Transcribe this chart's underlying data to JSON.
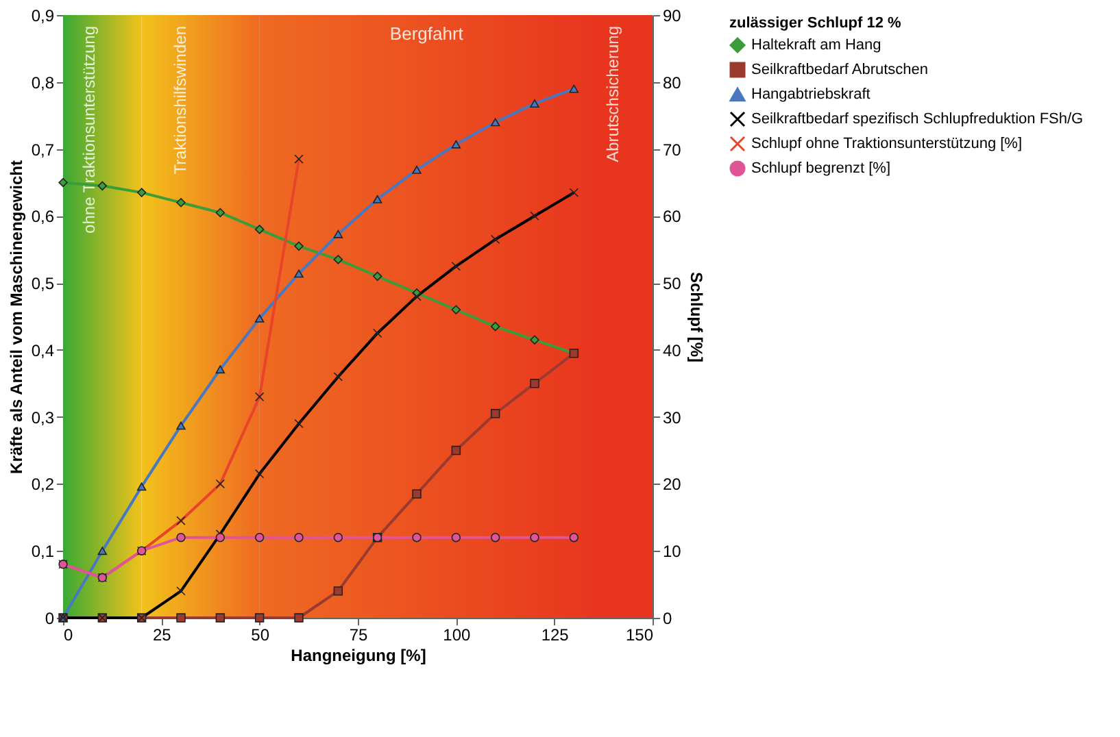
{
  "chart_data": {
    "type": "line",
    "xlabel": "Hangneigung [%]",
    "ylabel": "Kräfte als Anteil vom Maschinengewicht",
    "y2label": "Schlupf [%]",
    "legend_title": "zulässiger Schlupf 12 %",
    "legend": "right",
    "grid": true,
    "x": [
      0,
      10,
      20,
      30,
      40,
      50,
      60,
      70,
      80,
      90,
      100,
      110,
      120,
      130
    ],
    "xlim": [
      0,
      150
    ],
    "xticks": [
      0,
      25,
      50,
      75,
      100,
      125,
      150
    ],
    "ylim": [
      0,
      0.9
    ],
    "yticks": [
      {
        "value": 0,
        "label": "0"
      },
      {
        "value": 0.1,
        "label": "0,1"
      },
      {
        "value": 0.2,
        "label": "0,2"
      },
      {
        "value": 0.3,
        "label": "0,3"
      },
      {
        "value": 0.4,
        "label": "0,4"
      },
      {
        "value": 0.5,
        "label": "0,5"
      },
      {
        "value": 0.6,
        "label": "0,6"
      },
      {
        "value": 0.7,
        "label": "0,7"
      },
      {
        "value": 0.8,
        "label": "0,8"
      },
      {
        "value": 0.9,
        "label": "0,9"
      }
    ],
    "y2lim": [
      0,
      90
    ],
    "y2ticks": [
      0,
      10,
      20,
      30,
      40,
      50,
      60,
      70,
      80,
      90
    ],
    "bands": [
      {
        "axis": "x",
        "from": 0,
        "to": 20,
        "label": "ohne Traktionsunterstützung",
        "color": "#3aa935"
      },
      {
        "axis": "x",
        "from": 20,
        "to": 50,
        "label": "Traktionshilfswinden",
        "color": "#f2c21b"
      },
      {
        "axis": "x",
        "from": 50,
        "to": 135,
        "label": "Bergfahrt",
        "color": "#ef6a22"
      },
      {
        "axis": "x",
        "from": 135,
        "to": 150,
        "label": "Abrutschsicherung",
        "color": "#e8361e"
      }
    ],
    "series": [
      {
        "name": "Haltekraft am Hang",
        "color": "#3a9d3a",
        "marker": "diamond",
        "values": [
          0.65,
          0.645,
          0.635,
          0.62,
          0.605,
          0.58,
          0.555,
          0.535,
          0.51,
          0.485,
          0.46,
          0.435,
          0.415,
          0.395
        ]
      },
      {
        "name": "Seilkraftbedarf Abrutschen",
        "color": "#9b3a2e",
        "marker": "square",
        "values": [
          0,
          0,
          0,
          0,
          0,
          0,
          0,
          0.04,
          0.12,
          0.185,
          0.25,
          0.305,
          0.35,
          0.395
        ]
      },
      {
        "name": "Hangabtriebskraft",
        "color": "#4a78c0",
        "marker": "triangle",
        "values": [
          0,
          0.1,
          0.196,
          0.287,
          0.371,
          0.447,
          0.514,
          0.573,
          0.625,
          0.669,
          0.707,
          0.74,
          0.768,
          0.79
        ]
      },
      {
        "name": "Seilkraftbedarf spezifisch Schlupfreduktion FSh/G",
        "color": "#000000",
        "marker": "cross",
        "values": [
          0,
          0,
          0,
          0.04,
          0.125,
          0.215,
          0.29,
          0.36,
          0.425,
          0.48,
          0.525,
          0.565,
          0.6,
          0.635
        ]
      },
      {
        "name": "Schlupf ohne Traktionsunterstützung [%]",
        "color": "#e8442a",
        "marker": "cross",
        "axis": "y2",
        "x": [
          0,
          10,
          20,
          30,
          40,
          50,
          60
        ],
        "values": [
          8,
          6,
          10,
          14.5,
          20,
          33,
          68.5
        ]
      },
      {
        "name": "Schlupf begrenzt [%]",
        "color": "#e0559a",
        "marker": "circle",
        "axis": "y2",
        "values": [
          8,
          6,
          10,
          12,
          12,
          12,
          12,
          12,
          12,
          12,
          12,
          12,
          12,
          12
        ]
      }
    ]
  }
}
